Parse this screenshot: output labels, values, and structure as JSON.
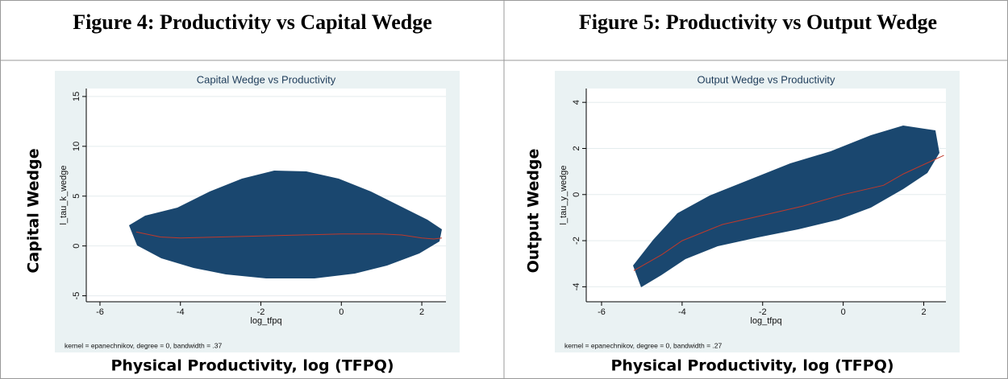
{
  "table": {
    "headers": [
      "Figure 4: Productivity vs Capital Wedge",
      "Figure 5: Productivity vs Output Wedge"
    ]
  },
  "chart_data": [
    {
      "type": "scatter",
      "title": "Capital Wedge vs Productivity",
      "x_label": "log_tfpq",
      "y_label": "l_tau_k_wedge",
      "note": "kernel = epanechnikov, degree = 0, bandwidth = .37",
      "outer_y_label": "Capital Wedge",
      "outer_x_label": "Physical Productivity, log (TFPQ)",
      "xlim": [
        -6.34,
        2.6
      ],
      "ylim": [
        -5.6,
        15.8
      ],
      "xticks": [
        -6,
        -4,
        -2,
        0,
        2
      ],
      "yticks": [
        -5,
        0,
        5,
        10,
        15
      ],
      "grid": true,
      "color": "#1a476f",
      "fit": {
        "color": "#c0392b",
        "x": [
          -5.1,
          -4.5,
          -4,
          -3,
          -2,
          -1,
          0,
          1,
          1.5,
          2,
          2.3,
          2.5
        ],
        "y": [
          1.4,
          0.9,
          0.8,
          0.9,
          1.0,
          1.1,
          1.2,
          1.2,
          1.1,
          0.8,
          0.7,
          0.8
        ]
      }
    },
    {
      "type": "scatter",
      "title": "Output Wedge vs Productivity",
      "x_label": "log_tfpq",
      "y_label": "l_tau_y_wedge",
      "note": "kernel = epanechnikov, degree = 0, bandwidth = .27",
      "outer_y_label": "Output Wedge",
      "outer_x_label": "Physical Productivity, log (TFPQ)",
      "xlim": [
        -6.38,
        2.55
      ],
      "ylim": [
        -4.65,
        4.6
      ],
      "xticks": [
        -6,
        -4,
        -2,
        0,
        2
      ],
      "yticks": [
        -4,
        -2,
        0,
        2,
        4
      ],
      "grid": true,
      "color": "#1a476f",
      "fit": {
        "color": "#c0392b",
        "x": [
          -5.2,
          -4.5,
          -4,
          -3,
          -2,
          -1,
          0,
          1,
          1.5,
          2,
          2.5
        ],
        "y": [
          -3.3,
          -2.6,
          -2.0,
          -1.3,
          -0.9,
          -0.5,
          0.0,
          0.4,
          0.9,
          1.3,
          1.7
        ]
      }
    }
  ]
}
